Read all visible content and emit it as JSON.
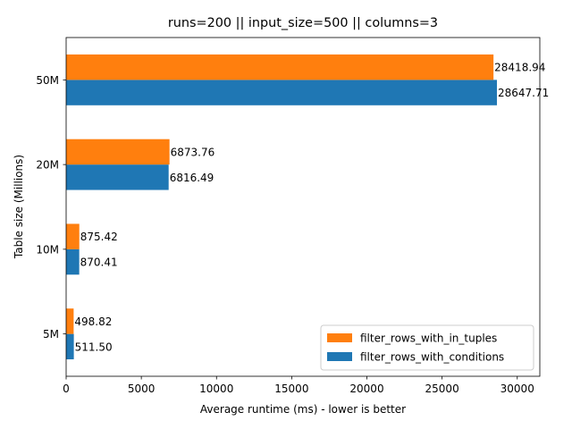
{
  "chart_data": {
    "type": "bar",
    "orientation": "horizontal",
    "title": "runs=200 || input_size=500 || columns=3",
    "xlabel": "Average runtime (ms) - lower is better",
    "ylabel": "Table size (Millions)",
    "categories": [
      "5M",
      "10M",
      "20M",
      "50M"
    ],
    "xlim": [
      0,
      31500
    ],
    "xticks": [
      0,
      5000,
      10000,
      15000,
      20000,
      25000,
      30000
    ],
    "grid": false,
    "legend_position": "lower-right",
    "series": [
      {
        "name": "filter_rows_with_conditions",
        "color": "#1f77b4",
        "values": [
          511.5,
          870.41,
          6816.49,
          28647.71
        ],
        "labels": [
          "511.50",
          "870.41",
          "6816.49",
          "28647.71"
        ]
      },
      {
        "name": "filter_rows_with_in_tuples",
        "color": "#ff7f0e",
        "values": [
          498.82,
          875.42,
          6873.76,
          28418.94
        ],
        "labels": [
          "498.82",
          "875.42",
          "6873.76",
          "28418.94"
        ]
      }
    ],
    "legend_order": [
      1,
      0
    ]
  }
}
